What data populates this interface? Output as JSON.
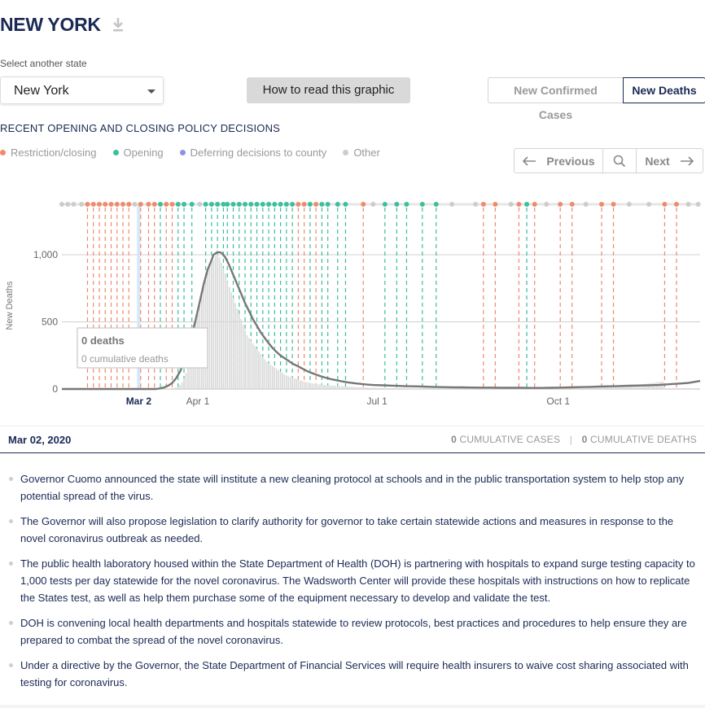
{
  "header": {
    "title": "NEW YORK",
    "download_icon": "download-icon"
  },
  "state_select": {
    "label": "Select another state",
    "value": "New York"
  },
  "howto_button": "How to read this graphic",
  "metric_toggle": {
    "confirmed_label": "New Confirmed Cases",
    "deaths_label": "New Deaths",
    "active": "New Deaths"
  },
  "policy": {
    "heading": "RECENT OPENING AND CLOSING POLICY DECISIONS",
    "legend": [
      {
        "label": "Restriction/closing",
        "color": "#ef8a6d"
      },
      {
        "label": "Opening",
        "color": "#3bbf9c"
      },
      {
        "label": "Deferring decisions to county",
        "color": "#8b93e6"
      },
      {
        "label": "Other",
        "color": "#cccccc"
      }
    ]
  },
  "nav": {
    "previous": "Previous",
    "next": "Next",
    "search_icon": "search-icon"
  },
  "tooltip": {
    "deaths": "0 deaths",
    "cumulative": "0 cumulative deaths"
  },
  "chart_data": {
    "type": "bar",
    "ylabel": "New Deaths",
    "ylim": [
      0,
      1200
    ],
    "yticks": [
      0,
      500,
      1000
    ],
    "ytick_labels": [
      "0",
      "500",
      "1,000"
    ],
    "xticks": [
      {
        "label": "Mar 2",
        "day": 61,
        "highlight": true
      },
      {
        "label": "Apr 1",
        "day": 91
      },
      {
        "label": "Jul 1",
        "day": 182
      },
      {
        "label": "Oct 1",
        "day": 274
      }
    ],
    "x_domain_days": [
      22,
      346
    ],
    "selected_day": 61,
    "daily_bars": {
      "start_day": 60,
      "values": [
        0,
        0,
        0,
        0,
        0,
        0,
        0,
        0,
        0,
        0,
        0,
        0,
        0,
        0,
        0,
        1,
        2,
        3,
        5,
        8,
        12,
        18,
        30,
        50,
        80,
        120,
        180,
        250,
        330,
        420,
        520,
        560,
        620,
        700,
        760,
        820,
        880,
        920,
        940,
        960,
        990,
        1000,
        980,
        940,
        900,
        860,
        800,
        760,
        720,
        680,
        640,
        600,
        560,
        520,
        480,
        440,
        400,
        380,
        360,
        340,
        320,
        300,
        280,
        260,
        240,
        220,
        200,
        190,
        180,
        170,
        160,
        150,
        140,
        130,
        120,
        110,
        100,
        95,
        90,
        85,
        80,
        75,
        70,
        65,
        60,
        55,
        50,
        48,
        45,
        42,
        40,
        38,
        36,
        34,
        32,
        30,
        29,
        28,
        27,
        26,
        25,
        24,
        23,
        22,
        21,
        20,
        19,
        18,
        17,
        16,
        15,
        14,
        13,
        12,
        12,
        11,
        11,
        10,
        10,
        9,
        9,
        9,
        8,
        8,
        8,
        8,
        7,
        7,
        7,
        7,
        7,
        6,
        6,
        6,
        6,
        6,
        6,
        5,
        5,
        5,
        5,
        5,
        5,
        5,
        5,
        5,
        5,
        5,
        5,
        5,
        5,
        5,
        5,
        5,
        5,
        5,
        5,
        5,
        5,
        5,
        5,
        5,
        5,
        5,
        5,
        5,
        5,
        5,
        5,
        5,
        5,
        5,
        5,
        5,
        5,
        5,
        5,
        5,
        5,
        5,
        5,
        5,
        5,
        5,
        5,
        5,
        5,
        5,
        5,
        5,
        5,
        5,
        5,
        5,
        5,
        5,
        5,
        5,
        5,
        5,
        5,
        5,
        5,
        5,
        5,
        5,
        5,
        5,
        5,
        5,
        5,
        5,
        5,
        5,
        5,
        5,
        5,
        5,
        5,
        5,
        5,
        5,
        6,
        6,
        6,
        6,
        6,
        7,
        7,
        7,
        8,
        8,
        8,
        9,
        9,
        10,
        10,
        11,
        12,
        13,
        14,
        15,
        16,
        17,
        18,
        19,
        20,
        21,
        22,
        23,
        24,
        25,
        26,
        28,
        30,
        32,
        34,
        36,
        38,
        40,
        42,
        44,
        46,
        48,
        50,
        52,
        54,
        56
      ]
    },
    "avg_line": {
      "points": [
        [
          22,
          0
        ],
        [
          70,
          0
        ],
        [
          72,
          5
        ],
        [
          74,
          12
        ],
        [
          76,
          25
        ],
        [
          78,
          45
        ],
        [
          80,
          80
        ],
        [
          82,
          130
        ],
        [
          84,
          200
        ],
        [
          86,
          290
        ],
        [
          88,
          400
        ],
        [
          90,
          520
        ],
        [
          92,
          650
        ],
        [
          94,
          780
        ],
        [
          96,
          890
        ],
        [
          98,
          960
        ],
        [
          99,
          1000
        ],
        [
          101,
          1020
        ],
        [
          103,
          1015
        ],
        [
          105,
          980
        ],
        [
          107,
          920
        ],
        [
          109,
          850
        ],
        [
          111,
          780
        ],
        [
          113,
          710
        ],
        [
          115,
          640
        ],
        [
          117,
          580
        ],
        [
          119,
          520
        ],
        [
          121,
          470
        ],
        [
          123,
          420
        ],
        [
          125,
          380
        ],
        [
          127,
          340
        ],
        [
          129,
          305
        ],
        [
          131,
          275
        ],
        [
          133,
          250
        ],
        [
          135,
          230
        ],
        [
          137,
          210
        ],
        [
          139,
          190
        ],
        [
          141,
          175
        ],
        [
          143,
          160
        ],
        [
          145,
          145
        ],
        [
          147,
          130
        ],
        [
          149,
          118
        ],
        [
          151,
          107
        ],
        [
          153,
          97
        ],
        [
          155,
          88
        ],
        [
          157,
          80
        ],
        [
          159,
          72
        ],
        [
          161,
          66
        ],
        [
          163,
          60
        ],
        [
          165,
          55
        ],
        [
          167,
          50
        ],
        [
          169,
          46
        ],
        [
          171,
          42
        ],
        [
          173,
          39
        ],
        [
          175,
          36
        ],
        [
          177,
          33
        ],
        [
          180,
          30
        ],
        [
          185,
          27
        ],
        [
          190,
          25
        ],
        [
          195,
          22
        ],
        [
          200,
          20
        ],
        [
          205,
          18
        ],
        [
          210,
          16
        ],
        [
          215,
          14
        ],
        [
          220,
          13
        ],
        [
          225,
          12
        ],
        [
          230,
          11
        ],
        [
          235,
          10
        ],
        [
          240,
          10
        ],
        [
          245,
          9
        ],
        [
          250,
          9
        ],
        [
          255,
          9
        ],
        [
          260,
          8
        ],
        [
          265,
          8
        ],
        [
          270,
          9
        ],
        [
          275,
          10
        ],
        [
          280,
          12
        ],
        [
          285,
          14
        ],
        [
          290,
          16
        ],
        [
          295,
          18
        ],
        [
          300,
          20
        ],
        [
          305,
          22
        ],
        [
          310,
          24
        ],
        [
          315,
          26
        ],
        [
          320,
          28
        ],
        [
          325,
          30
        ],
        [
          330,
          35
        ],
        [
          335,
          40
        ],
        [
          340,
          45
        ],
        [
          346,
          60
        ]
      ]
    },
    "policy_events": [
      {
        "day": 22,
        "kind": "other"
      },
      {
        "day": 25,
        "kind": "other"
      },
      {
        "day": 28,
        "kind": "other"
      },
      {
        "day": 32,
        "kind": "other"
      },
      {
        "day": 35,
        "kind": "restriction"
      },
      {
        "day": 38,
        "kind": "restriction"
      },
      {
        "day": 41,
        "kind": "restriction"
      },
      {
        "day": 44,
        "kind": "restriction"
      },
      {
        "day": 47,
        "kind": "restriction"
      },
      {
        "day": 50,
        "kind": "restriction"
      },
      {
        "day": 53,
        "kind": "restriction"
      },
      {
        "day": 56,
        "kind": "restriction"
      },
      {
        "day": 59,
        "kind": "other"
      },
      {
        "day": 62,
        "kind": "restriction"
      },
      {
        "day": 66,
        "kind": "restriction"
      },
      {
        "day": 69,
        "kind": "restriction"
      },
      {
        "day": 72,
        "kind": "opening"
      },
      {
        "day": 75,
        "kind": "restriction"
      },
      {
        "day": 78,
        "kind": "restriction"
      },
      {
        "day": 81,
        "kind": "opening"
      },
      {
        "day": 84,
        "kind": "opening"
      },
      {
        "day": 88,
        "kind": "opening"
      },
      {
        "day": 92,
        "kind": "other"
      },
      {
        "day": 95,
        "kind": "opening"
      },
      {
        "day": 98,
        "kind": "opening"
      },
      {
        "day": 101,
        "kind": "opening"
      },
      {
        "day": 104,
        "kind": "opening"
      },
      {
        "day": 106,
        "kind": "opening"
      },
      {
        "day": 109,
        "kind": "opening"
      },
      {
        "day": 112,
        "kind": "opening"
      },
      {
        "day": 115,
        "kind": "opening"
      },
      {
        "day": 118,
        "kind": "opening"
      },
      {
        "day": 121,
        "kind": "opening"
      },
      {
        "day": 124,
        "kind": "opening"
      },
      {
        "day": 127,
        "kind": "opening"
      },
      {
        "day": 130,
        "kind": "opening"
      },
      {
        "day": 133,
        "kind": "opening"
      },
      {
        "day": 136,
        "kind": "opening"
      },
      {
        "day": 139,
        "kind": "opening"
      },
      {
        "day": 142,
        "kind": "restriction"
      },
      {
        "day": 145,
        "kind": "restriction"
      },
      {
        "day": 148,
        "kind": "opening"
      },
      {
        "day": 151,
        "kind": "restriction"
      },
      {
        "day": 154,
        "kind": "opening"
      },
      {
        "day": 157,
        "kind": "opening"
      },
      {
        "day": 162,
        "kind": "opening"
      },
      {
        "day": 166,
        "kind": "opening"
      },
      {
        "day": 175,
        "kind": "restriction"
      },
      {
        "day": 180,
        "kind": "other"
      },
      {
        "day": 186,
        "kind": "opening"
      },
      {
        "day": 192,
        "kind": "opening"
      },
      {
        "day": 197,
        "kind": "opening"
      },
      {
        "day": 205,
        "kind": "opening"
      },
      {
        "day": 212,
        "kind": "opening"
      },
      {
        "day": 220,
        "kind": "other"
      },
      {
        "day": 232,
        "kind": "other"
      },
      {
        "day": 236,
        "kind": "restriction"
      },
      {
        "day": 242,
        "kind": "restriction"
      },
      {
        "day": 250,
        "kind": "other"
      },
      {
        "day": 254,
        "kind": "restriction"
      },
      {
        "day": 258,
        "kind": "opening"
      },
      {
        "day": 262,
        "kind": "restriction"
      },
      {
        "day": 268,
        "kind": "other"
      },
      {
        "day": 275,
        "kind": "restriction"
      },
      {
        "day": 281,
        "kind": "restriction"
      },
      {
        "day": 288,
        "kind": "other"
      },
      {
        "day": 296,
        "kind": "restriction"
      },
      {
        "day": 302,
        "kind": "restriction"
      },
      {
        "day": 310,
        "kind": "other"
      },
      {
        "day": 320,
        "kind": "other"
      },
      {
        "day": 328,
        "kind": "restriction"
      },
      {
        "day": 334,
        "kind": "restriction"
      },
      {
        "day": 340,
        "kind": "other"
      },
      {
        "day": 345,
        "kind": "other"
      }
    ],
    "grid": true
  },
  "details": {
    "date": "Mar 02, 2020",
    "cumulative_cases_value": "0",
    "cumulative_cases_label": "CUMULATIVE CASES",
    "cumulative_deaths_value": "0",
    "cumulative_deaths_label": "CUMULATIVE DEATHS",
    "notes": [
      "Governor Cuomo announced the state will institute a new cleaning protocol at schools and in the public transportation system to help stop any potential spread of the virus.",
      "The Governor will also propose legislation to clarify authority for governor to take certain statewide actions and measures in response to the novel coronavirus outbreak as needed.",
      "The public health laboratory housed within the State Department of Health (DOH) is partnering with hospitals to expand surge testing capacity to 1,000 tests per day statewide for the novel coronavirus. The Wadsworth Center will provide these hospitals with instructions on how to replicate the States test, as well as help them purchase some of the equipment necessary to develop and validate the test.",
      "DOH is convening local health departments and hospitals statewide to review protocols, best practices and procedures to help ensure they are prepared to combat the spread of the novel coronavirus.",
      "Under a directive by the Governor, the State Department of Financial Services will require health insurers to waive cost sharing associated with testing for coronavirus."
    ]
  }
}
